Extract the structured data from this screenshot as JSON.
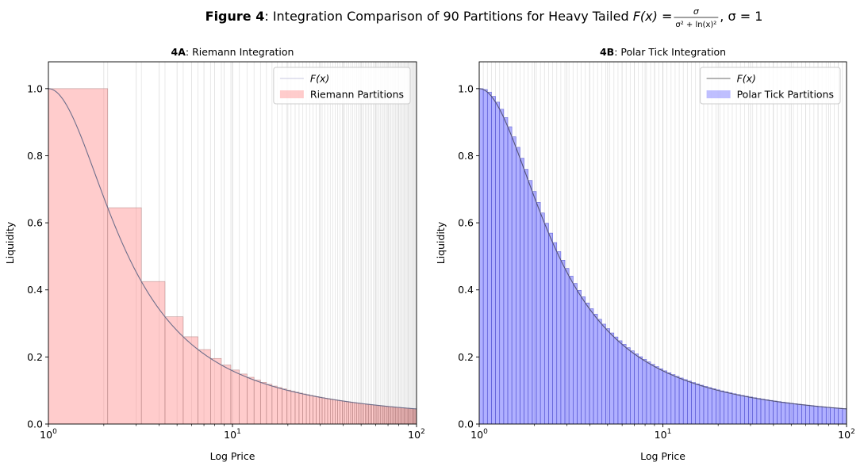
{
  "figure": {
    "title_bold": "Figure 4",
    "title_rest": ": Integration Comparison of 90 Partitions for Heavy Tailed ",
    "formula_lhs": "F(x) = ",
    "formula_num": "σ",
    "formula_den": "σ² + ln(x)²",
    "formula_tail": ", σ = 1"
  },
  "chart_data": [
    {
      "type": "bar",
      "panel_bold": "4A",
      "panel_rest": ": Riemann Integration",
      "title": "4A: Riemann Integration",
      "xlabel": "Log Price",
      "ylabel": "Liquidity",
      "xscale": "log",
      "xlim": [
        1,
        100
      ],
      "ylim": [
        0,
        1.08
      ],
      "xticks": [
        {
          "value": 1,
          "base": "10",
          "exp": "0"
        },
        {
          "value": 10,
          "base": "10",
          "exp": "1"
        },
        {
          "value": 100,
          "base": "10",
          "exp": "2"
        }
      ],
      "yticks": [
        "0.0",
        "0.2",
        "0.4",
        "0.6",
        "0.8",
        "1.0"
      ],
      "partitions": 90,
      "partition_scheme": "linear",
      "sigma": 1,
      "grid": true,
      "legend_position": "top-right",
      "series": [
        {
          "name": "F(x)",
          "kind": "line"
        },
        {
          "name": "Riemann Partitions",
          "kind": "bars"
        }
      ],
      "colors": {
        "fill": "#ff9a9a",
        "fill_opacity": 0.5,
        "bar_edge": "#b08080",
        "curve": "#6e6e8a",
        "grid": "#d6d6d6"
      },
      "sample_bars": [
        {
          "x_left": 1.0,
          "height": 1.0
        },
        {
          "x_left": 2.1,
          "height": 0.646
        },
        {
          "x_left": 3.2,
          "height": 0.426
        },
        {
          "x_left": 4.3,
          "height": 0.32
        },
        {
          "x_left": 5.4,
          "height": 0.26
        }
      ]
    },
    {
      "type": "bar",
      "panel_bold": "4B",
      "panel_rest": ": Polar Tick Integration",
      "title": "4B: Polar Tick Integration",
      "xlabel": "Log Price",
      "ylabel": "Liquidity",
      "xscale": "log",
      "xlim": [
        1,
        100
      ],
      "ylim": [
        0,
        1.08
      ],
      "xticks": [
        {
          "value": 1,
          "base": "10",
          "exp": "0"
        },
        {
          "value": 10,
          "base": "10",
          "exp": "1"
        },
        {
          "value": 100,
          "base": "10",
          "exp": "2"
        }
      ],
      "yticks": [
        "0.0",
        "0.2",
        "0.4",
        "0.6",
        "0.8",
        "1.0"
      ],
      "partitions": 90,
      "partition_scheme": "polar",
      "sigma": 1,
      "grid": true,
      "legend_position": "top-right",
      "series": [
        {
          "name": "F(x)",
          "kind": "line"
        },
        {
          "name": "Polar Tick Partitions",
          "kind": "bars"
        }
      ],
      "colors": {
        "fill": "#7070ff",
        "fill_opacity": 0.55,
        "bar_edge": "#4a4acf",
        "curve": "#555577",
        "grid": "#d6d6d6"
      }
    }
  ]
}
